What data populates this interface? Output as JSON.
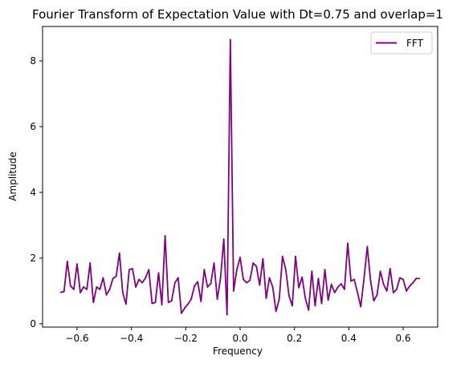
{
  "chart_data": {
    "type": "line",
    "title": "Fourier Transform of Expectation Value with Dt=0.75 and overlap=1",
    "xlabel": "Frequency",
    "ylabel": "Amplitude",
    "xlim": [
      -0.727,
      0.727
    ],
    "ylim": [
      -0.1,
      9.05
    ],
    "xticks": [
      -0.6,
      -0.4,
      -0.2,
      0.0,
      0.2,
      0.4,
      0.6
    ],
    "xtick_labels": [
      "−0.6",
      "−0.4",
      "−0.2",
      "0.0",
      "0.2",
      "0.4",
      "0.6"
    ],
    "yticks": [
      0,
      2,
      4,
      6,
      8
    ],
    "ytick_labels": [
      "0",
      "2",
      "4",
      "6",
      "8"
    ],
    "grid": false,
    "legend_position": "top-right",
    "series": [
      {
        "name": "FFT",
        "color": "#800080",
        "x": [
          -0.66,
          -0.648,
          -0.636,
          -0.624,
          -0.612,
          -0.6,
          -0.588,
          -0.576,
          -0.564,
          -0.552,
          -0.54,
          -0.528,
          -0.516,
          -0.504,
          -0.492,
          -0.48,
          -0.468,
          -0.456,
          -0.444,
          -0.432,
          -0.42,
          -0.408,
          -0.396,
          -0.384,
          -0.372,
          -0.36,
          -0.348,
          -0.336,
          -0.324,
          -0.312,
          -0.3,
          -0.288,
          -0.276,
          -0.264,
          -0.252,
          -0.24,
          -0.228,
          -0.216,
          -0.204,
          -0.192,
          -0.18,
          -0.168,
          -0.156,
          -0.144,
          -0.132,
          -0.12,
          -0.108,
          -0.096,
          -0.084,
          -0.072,
          -0.06,
          -0.048,
          -0.036,
          -0.024,
          -0.012,
          0.0,
          0.012,
          0.024,
          0.036,
          0.048,
          0.06,
          0.072,
          0.084,
          0.096,
          0.108,
          0.12,
          0.132,
          0.144,
          0.156,
          0.168,
          0.18,
          0.192,
          0.204,
          0.216,
          0.228,
          0.24,
          0.252,
          0.264,
          0.276,
          0.288,
          0.3,
          0.312,
          0.324,
          0.336,
          0.348,
          0.36,
          0.372,
          0.384,
          0.396,
          0.408,
          0.42,
          0.432,
          0.444,
          0.456,
          0.468,
          0.48,
          0.492,
          0.504,
          0.516,
          0.528,
          0.54,
          0.552,
          0.564,
          0.576,
          0.588,
          0.6,
          0.612,
          0.624,
          0.636,
          0.648,
          0.66
        ],
        "values": [
          0.96,
          0.98,
          1.9,
          1.15,
          1.05,
          1.82,
          0.95,
          1.12,
          1.05,
          1.85,
          0.65,
          1.12,
          1.05,
          1.4,
          0.88,
          1.05,
          1.38,
          1.45,
          2.15,
          0.95,
          0.6,
          1.65,
          1.68,
          1.12,
          1.35,
          1.25,
          1.4,
          1.65,
          0.62,
          0.65,
          1.55,
          0.58,
          2.68,
          0.65,
          0.7,
          1.25,
          1.4,
          0.32,
          0.48,
          0.6,
          0.75,
          1.15,
          1.28,
          0.68,
          1.65,
          1.12,
          1.22,
          1.85,
          0.75,
          1.4,
          2.58,
          0.28,
          8.65,
          1.0,
          1.65,
          2.02,
          1.35,
          1.25,
          1.32,
          1.85,
          1.75,
          1.18,
          1.98,
          0.78,
          1.4,
          1.12,
          0.38,
          0.75,
          2.05,
          1.65,
          0.85,
          0.55,
          2.05,
          1.1,
          1.42,
          0.78,
          0.42,
          1.6,
          0.55,
          1.38,
          0.62,
          1.65,
          0.72,
          1.2,
          0.95,
          1.12,
          1.22,
          1.05,
          2.45,
          1.3,
          1.35,
          0.95,
          0.52,
          1.38,
          2.35,
          1.32,
          0.7,
          0.88,
          1.6,
          1.2,
          1.0,
          1.68,
          0.95,
          1.05,
          1.4,
          1.35,
          1.0,
          1.15,
          1.25,
          1.38,
          1.38
        ]
      }
    ]
  }
}
